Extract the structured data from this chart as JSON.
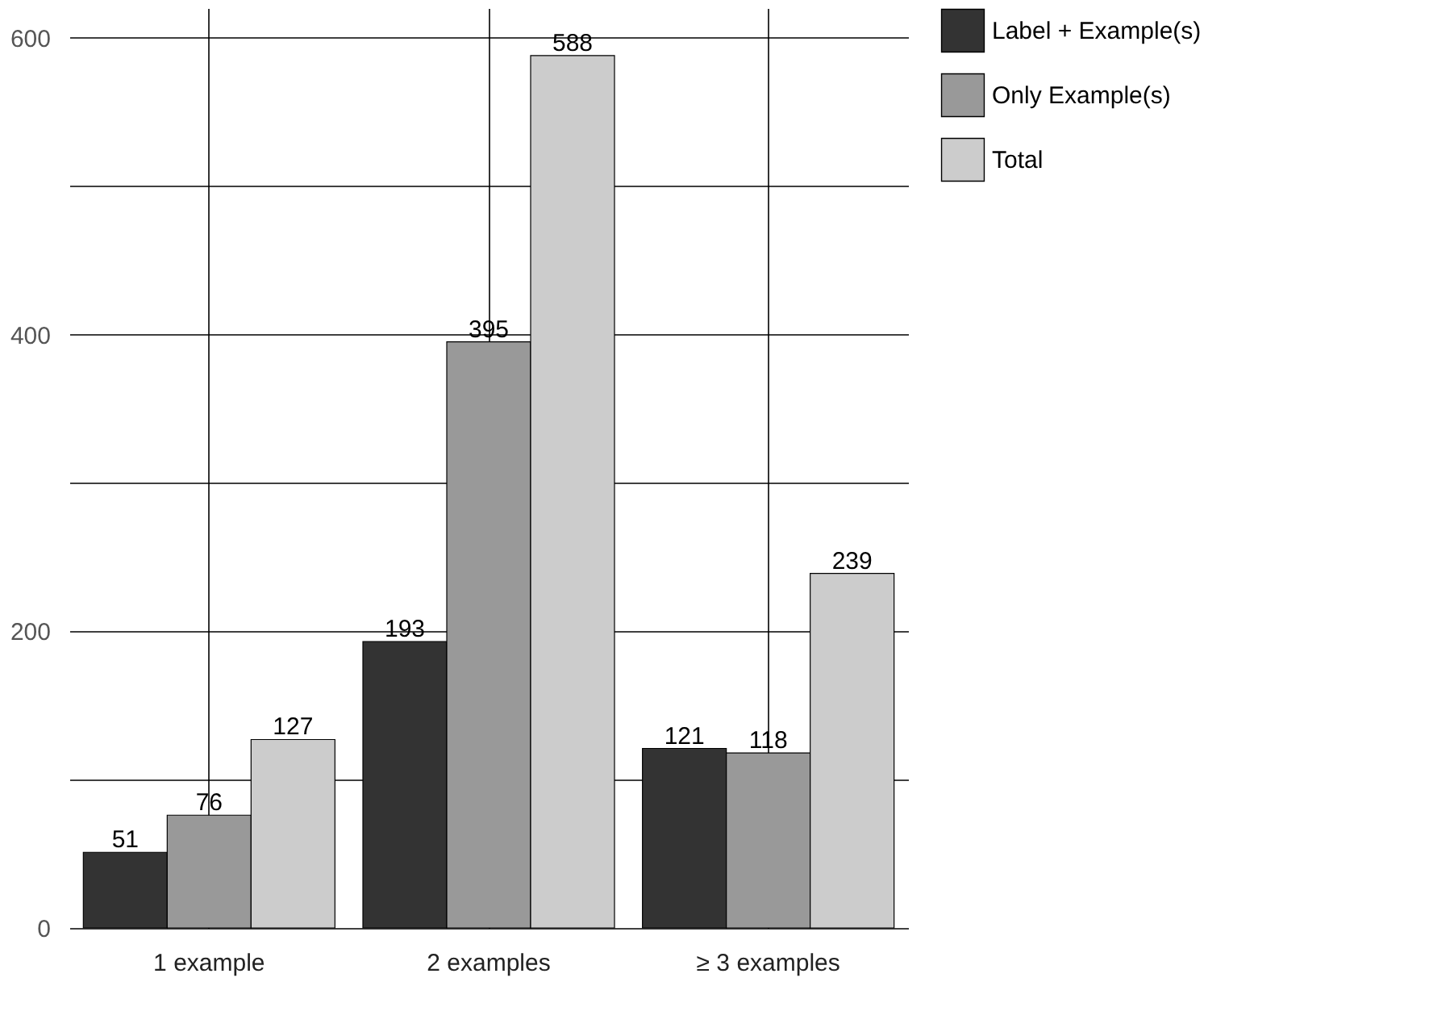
{
  "chart_data": {
    "type": "bar",
    "categories": [
      "1 example",
      "2 examples",
      "≥ 3 examples"
    ],
    "series": [
      {
        "name": "Label + Example(s)",
        "color": "#333333",
        "values": [
          51,
          193,
          121
        ]
      },
      {
        "name": "Only Example(s)",
        "color": "#999999",
        "values": [
          76,
          395,
          118
        ]
      },
      {
        "name": "Total",
        "color": "#cccccc",
        "values": [
          127,
          588,
          239
        ]
      }
    ],
    "ylim": [
      0,
      620
    ],
    "yticks": [
      0,
      {
        "value": 100,
        "label": null
      },
      200,
      {
        "value": 300,
        "label": null
      },
      400,
      {
        "value": 500,
        "label": null
      },
      600
    ],
    "grid": true,
    "legend": "right",
    "data_labels": true
  }
}
